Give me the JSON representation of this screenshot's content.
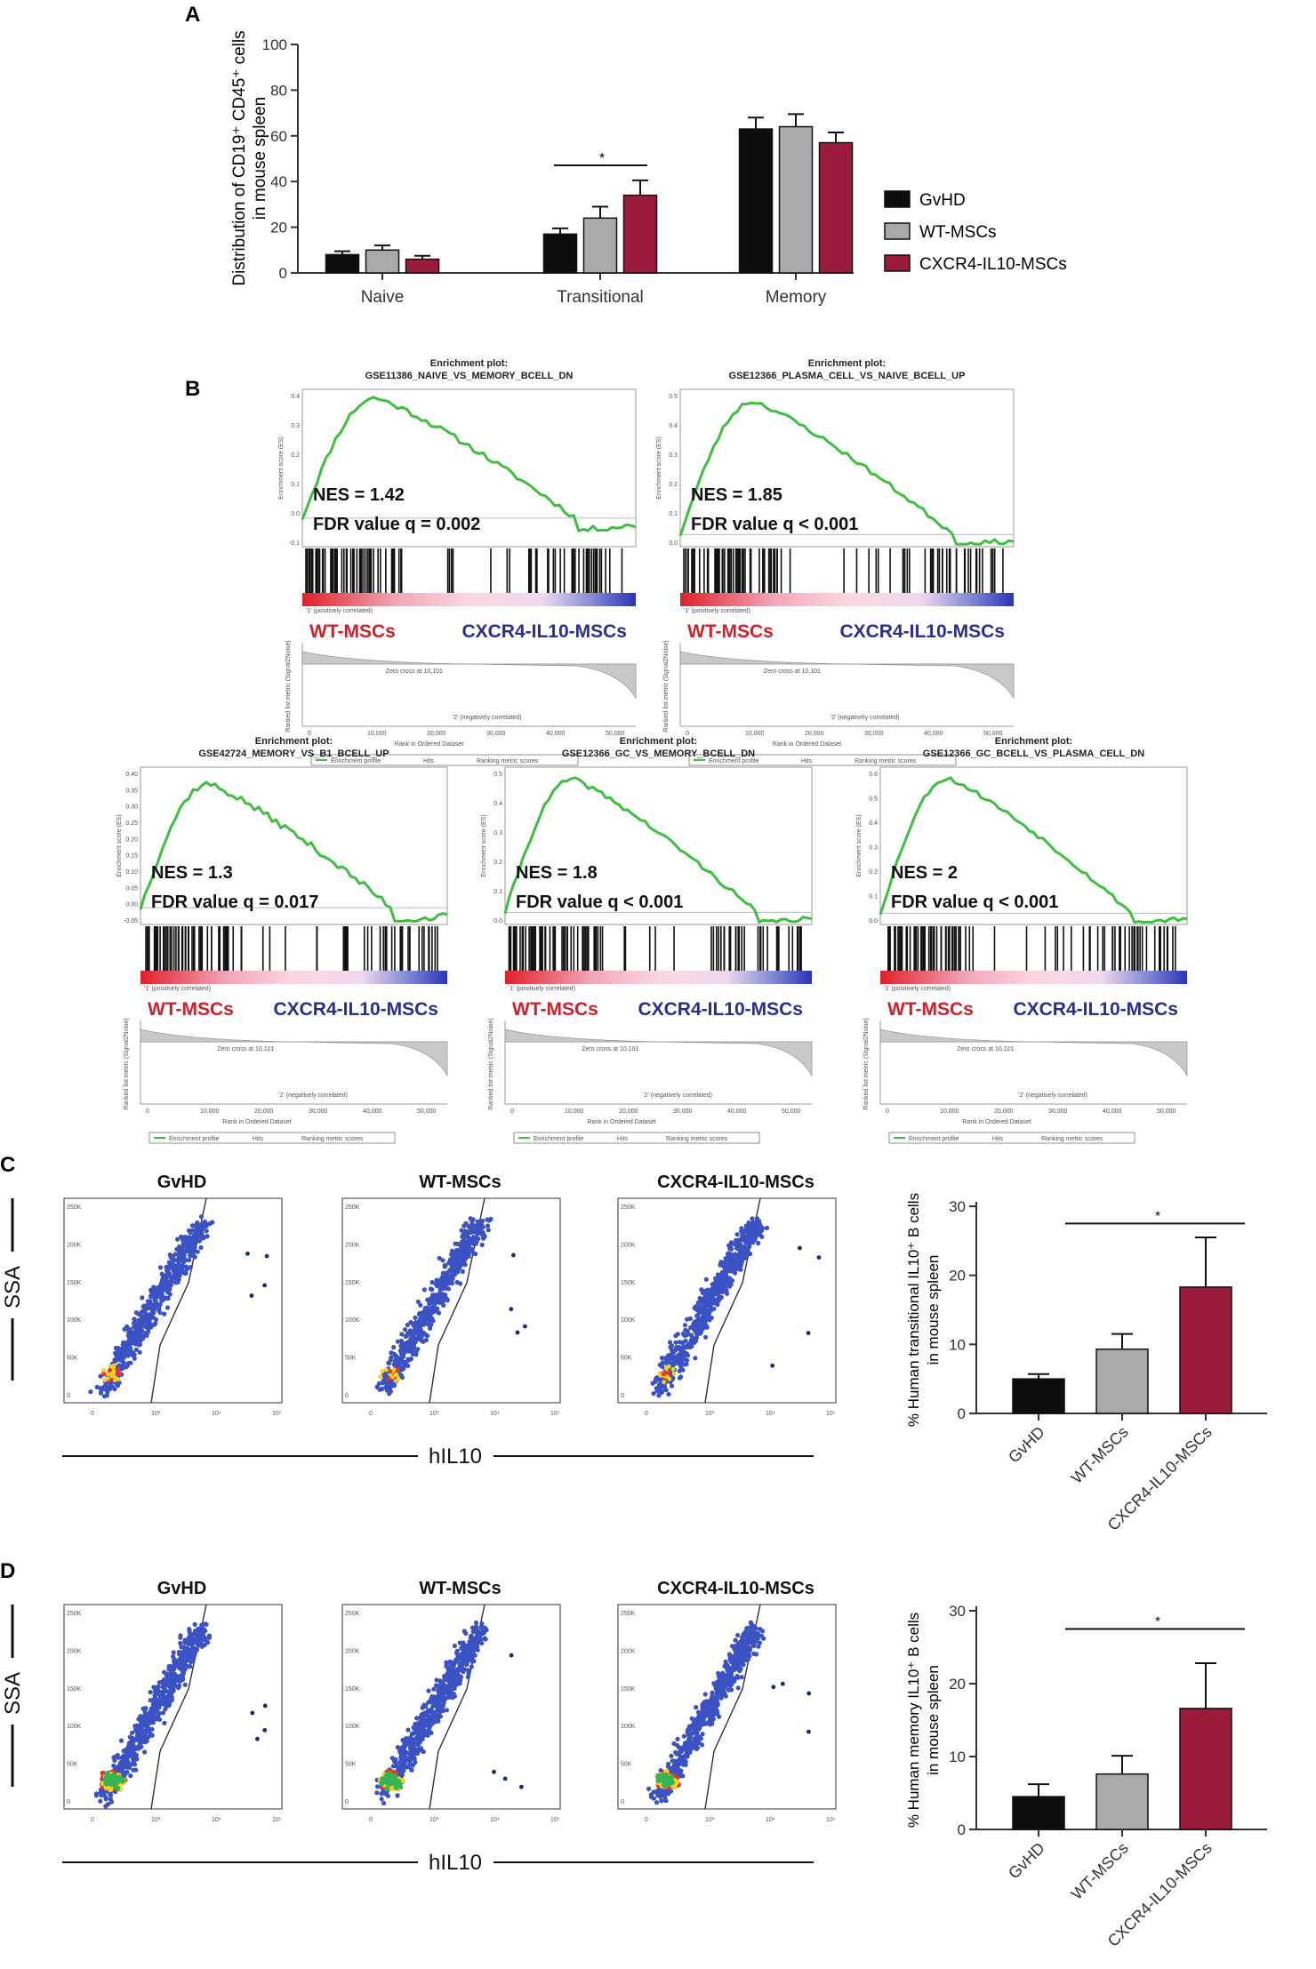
{
  "colors": {
    "gvhd": "#0d0d0d",
    "wt": "#a9a9a9",
    "cxcr4": "#9b1b3b",
    "gsea_curve": "#3fbf3f",
    "wt_label": "#d0202a",
    "cxcr4_label": "#2a2f8f",
    "dot_blue": "#3b52c4",
    "dot_green": "#35b455",
    "dot_red": "#e8322a",
    "dot_yellow": "#f2d21c"
  },
  "panel_labels": {
    "a": "A",
    "b": "B",
    "c": "C",
    "d": "D"
  },
  "chart_data": [
    {
      "id": "A",
      "type": "bar",
      "categories": [
        "Naive",
        "Transitional",
        "Memory"
      ],
      "series": [
        {
          "name": "GvHD",
          "values": [
            8,
            17,
            63
          ],
          "errors": [
            1.5,
            2.5,
            5
          ]
        },
        {
          "name": "WT-MSCs",
          "values": [
            10,
            24,
            64
          ],
          "errors": [
            2,
            5,
            5.5
          ]
        },
        {
          "name": "CXCR4-IL10-MSCs",
          "values": [
            6,
            34,
            57
          ],
          "errors": [
            1.5,
            6.5,
            4.5
          ]
        }
      ],
      "ylabel": "Distribution of CD19⁺ CD45⁺ cells in mouse spleen",
      "ylim": [
        0,
        100
      ],
      "yticks": [
        0,
        20,
        40,
        60,
        80,
        100
      ],
      "significance": "*",
      "legend": [
        "GvHD",
        "WT-MSCs",
        "CXCR4-IL10-MSCs"
      ],
      "legend_position": "right"
    },
    {
      "id": "C",
      "type": "bar",
      "categories": [
        "GvHD",
        "WT-MSCs",
        "CXCR4-IL10-MSCs"
      ],
      "values": [
        5,
        9.3,
        18.3
      ],
      "errors": [
        0.7,
        2.2,
        7.2
      ],
      "ylabel": "% Human transitional IL10⁺ B cells in mouse spleen",
      "ylim": [
        0,
        30
      ],
      "yticks": [
        0,
        10,
        20,
        30
      ],
      "significance": "*"
    },
    {
      "id": "D",
      "type": "bar",
      "categories": [
        "GvHD",
        "WT-MSCs",
        "CXCR4-IL10-MSCs"
      ],
      "values": [
        4.5,
        7.6,
        16.6
      ],
      "errors": [
        1.7,
        2.5,
        6.2
      ],
      "ylabel": "% Human memory IL10⁺ B cells in mouse spleen",
      "ylim": [
        0,
        30
      ],
      "yticks": [
        0,
        10,
        20,
        30
      ],
      "significance": "*"
    }
  ],
  "gsea": {
    "title_prefix": "Enrichment plot:",
    "group_left": "WT-MSCs",
    "group_right": "CXCR4-IL10-MSCs",
    "y_label": "Enrichment score (ES)",
    "metric_label": "Ranked list metric (Signal2Noise)",
    "x_label": "Rank in Ordered Dataset",
    "x_ticks": [
      "0",
      "10,000",
      "20,000",
      "30,000",
      "40,000",
      "50,000"
    ],
    "zero_cross_label": "Zero cross at 10,101",
    "pos_label": "'1' (positively correlated)",
    "neg_label": "'2' (negatively correlated)",
    "legend": [
      "Enrichment profile",
      "Hits",
      "Ranking metric scores"
    ],
    "plots": [
      {
        "gene_set": "GSE11386_NAIVE_VS_MEMORY_BCELL_DN",
        "nes": "NES = 1.42",
        "fdr": "FDR value q = 0.002",
        "es_ticks": [
          "0.4",
          "0.3",
          "0.2",
          "0.1",
          "0.0",
          "-0.1"
        ],
        "peak_es": 0.42,
        "es_min": -0.1,
        "es_max": 0.45
      },
      {
        "gene_set": "GSE12366_PLASMA_CELL_VS_NAIVE_BCELL_UP",
        "nes": "NES = 1.85",
        "fdr": "FDR value q < 0.001",
        "es_ticks": [
          "0.5",
          "0.4",
          "0.3",
          "0.2",
          "0.1",
          "0.0"
        ],
        "peak_es": 0.55,
        "es_min": -0.05,
        "es_max": 0.6
      },
      {
        "gene_set": "GSE42724_MEMORY_VS_B1_BCELL_UP",
        "nes": "NES = 1.3",
        "fdr": "FDR value q = 0.017",
        "es_ticks": [
          "0.40",
          "0.35",
          "0.30",
          "0.25",
          "0.20",
          "0.15",
          "0.10",
          "0.05",
          "0.00",
          "-0.05"
        ],
        "peak_es": 0.37,
        "es_min": -0.05,
        "es_max": 0.42
      },
      {
        "gene_set": "GSE12366_GC_VS_MEMORY_BCELL_DN",
        "nes": "NES = 1.8",
        "fdr": "FDR value q < 0.001",
        "es_ticks": [
          "0.5",
          "0.4",
          "0.3",
          "0.2",
          "0.1",
          "0.0"
        ],
        "peak_es": 0.55,
        "es_min": -0.05,
        "es_max": 0.6
      },
      {
        "gene_set": "GSE12366_GC_BCELL_VS_PLASMA_CELL_DN",
        "nes": "NES = 2",
        "fdr": "FDR value q < 0.001",
        "es_ticks": [
          "0.6",
          "0.5",
          "0.4",
          "0.3",
          "0.2",
          "0.1",
          "0.0"
        ],
        "peak_es": 0.6,
        "es_min": -0.05,
        "es_max": 0.65
      }
    ]
  },
  "flow": {
    "groups": [
      "GvHD",
      "WT-MSCs",
      "CXCR4-IL10-MSCs"
    ],
    "y_axis": "SSA",
    "x_axis": "hIL10",
    "y_ticks": [
      "250K",
      "200K",
      "150K",
      "100K",
      "50K",
      "0"
    ],
    "x_ticks": [
      "0",
      "10³",
      "10⁴",
      "10⁵"
    ]
  }
}
